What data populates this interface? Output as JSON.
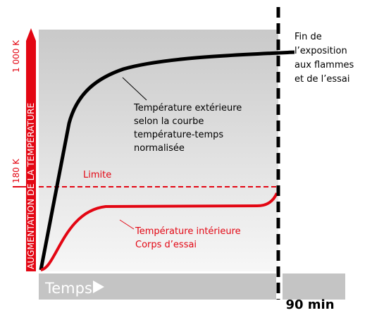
{
  "axis": {
    "label": "AUGMENTATION DE LA TEMPÉRATURE",
    "tick_high": "1 000 K",
    "tick_low": "180 K",
    "time_label": "Temps",
    "end_label": "90 min"
  },
  "limit": {
    "label": "Limite"
  },
  "end_note": {
    "lines": [
      "Fin de",
      "l’exposition",
      "aux flammes",
      "et de l’essai"
    ]
  },
  "outer_curve": {
    "lines": [
      "Température extérieure",
      "selon la courbe",
      "température-temps",
      "normalisée"
    ]
  },
  "inner_curve": {
    "lines": [
      "Température intérieure",
      "Corps d’essai"
    ]
  }
}
